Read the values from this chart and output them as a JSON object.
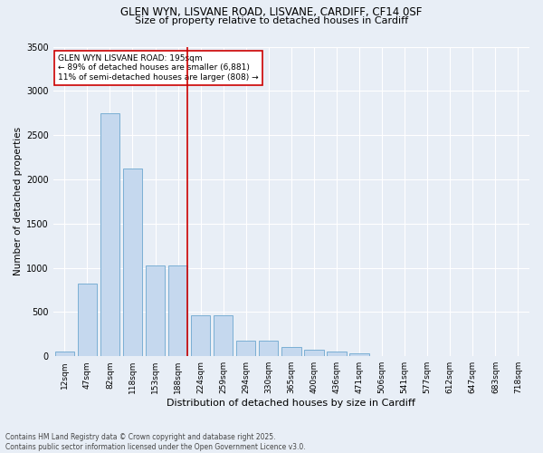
{
  "title_line1": "GLEN WYN, LISVANE ROAD, LISVANE, CARDIFF, CF14 0SF",
  "title_line2": "Size of property relative to detached houses in Cardiff",
  "xlabel": "Distribution of detached houses by size in Cardiff",
  "ylabel": "Number of detached properties",
  "categories": [
    "12sqm",
    "47sqm",
    "82sqm",
    "118sqm",
    "153sqm",
    "188sqm",
    "224sqm",
    "259sqm",
    "294sqm",
    "330sqm",
    "365sqm",
    "400sqm",
    "436sqm",
    "471sqm",
    "506sqm",
    "541sqm",
    "577sqm",
    "612sqm",
    "647sqm",
    "683sqm",
    "718sqm"
  ],
  "values": [
    50,
    820,
    2750,
    2120,
    1030,
    1030,
    460,
    460,
    175,
    175,
    100,
    75,
    50,
    30,
    0,
    0,
    0,
    0,
    0,
    0,
    0
  ],
  "bar_color": "#c5d8ee",
  "bar_edge_color": "#7bafd4",
  "bg_color": "#e8eef6",
  "grid_color": "#ffffff",
  "vline_color": "#cc0000",
  "annotation_title": "GLEN WYN LISVANE ROAD: 195sqm",
  "annotation_line1": "← 89% of detached houses are smaller (6,881)",
  "annotation_line2": "11% of semi-detached houses are larger (808) →",
  "annotation_box_color": "#ffffff",
  "annotation_box_edge": "#cc0000",
  "ylim": [
    0,
    3500
  ],
  "yticks": [
    0,
    500,
    1000,
    1500,
    2000,
    2500,
    3000,
    3500
  ],
  "footer_line1": "Contains HM Land Registry data © Crown copyright and database right 2025.",
  "footer_line2": "Contains public sector information licensed under the Open Government Licence v3.0."
}
